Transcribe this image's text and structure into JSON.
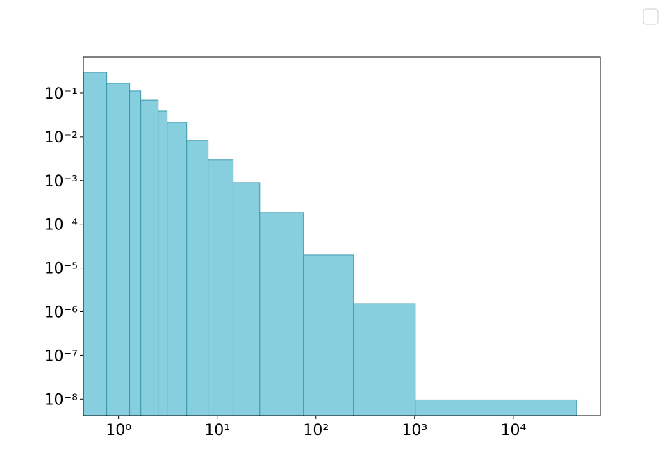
{
  "chart_data": {
    "type": "histogram",
    "bins": [
      0.44,
      0.759,
      1.296,
      1.68,
      2.52,
      3.11,
      4.9,
      8.09,
      14.5,
      26.9,
      74.7,
      240,
      1016,
      43700
    ],
    "values": [
      0.3,
      0.167,
      0.112,
      0.069,
      0.0386,
      0.0215,
      0.0083,
      0.003,
      0.00089,
      0.000185,
      1.98e-05,
      1.52e-06,
      9.6e-09
    ],
    "color": "#87cfdf",
    "edgecolor": "#3a9aaa",
    "xscale": "log",
    "yscale": "log",
    "xlim": [
      0.44,
      76000
    ],
    "ylim": [
      4.2e-09,
      0.67
    ],
    "xticks": [
      {
        "value": 1,
        "label": "10⁰"
      },
      {
        "value": 10,
        "label": "10¹"
      },
      {
        "value": 100,
        "label": "10²"
      },
      {
        "value": 1000,
        "label": "10³"
      },
      {
        "value": 10000,
        "label": "10⁴"
      }
    ],
    "yticks": [
      {
        "value": 0.1,
        "label": "10⁻¹"
      },
      {
        "value": 0.01,
        "label": "10⁻²"
      },
      {
        "value": 0.001,
        "label": "10⁻³"
      },
      {
        "value": 0.0001,
        "label": "10⁻⁴"
      },
      {
        "value": 1e-05,
        "label": "10⁻⁵"
      },
      {
        "value": 1e-06,
        "label": "10⁻⁶"
      },
      {
        "value": 1e-07,
        "label": "10⁻⁷"
      },
      {
        "value": 1e-08,
        "label": "10⁻⁸"
      }
    ]
  }
}
